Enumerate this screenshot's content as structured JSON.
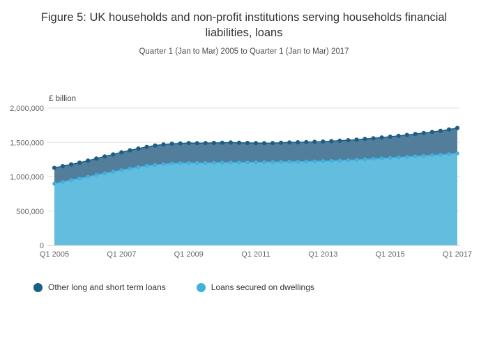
{
  "title": "Figure 5: UK households and non-profit institutions serving households financial liabilities, loans",
  "subtitle": "Quarter 1 (Jan to Mar) 2005 to Quarter 1 (Jan to Mar) 2017",
  "chart_data": {
    "type": "area",
    "unit_label": "£ billion",
    "ylim": [
      0,
      2000000
    ],
    "grid": true,
    "legend_position": "bottom",
    "yticks": [
      {
        "value": 0,
        "label": "0"
      },
      {
        "value": 500000,
        "label": "500,000"
      },
      {
        "value": 1000000,
        "label": "1,000,000"
      },
      {
        "value": 1500000,
        "label": "1,500,000"
      },
      {
        "value": 2000000,
        "label": "2,000,000"
      }
    ],
    "x": [
      "Q1 2005",
      "Q2 2005",
      "Q3 2005",
      "Q4 2005",
      "Q1 2006",
      "Q2 2006",
      "Q3 2006",
      "Q4 2006",
      "Q1 2007",
      "Q2 2007",
      "Q3 2007",
      "Q4 2007",
      "Q1 2008",
      "Q2 2008",
      "Q3 2008",
      "Q4 2008",
      "Q1 2009",
      "Q2 2009",
      "Q3 2009",
      "Q4 2009",
      "Q1 2010",
      "Q2 2010",
      "Q3 2010",
      "Q4 2010",
      "Q1 2011",
      "Q2 2011",
      "Q3 2011",
      "Q4 2011",
      "Q1 2012",
      "Q2 2012",
      "Q3 2012",
      "Q4 2012",
      "Q1 2013",
      "Q2 2013",
      "Q3 2013",
      "Q4 2013",
      "Q1 2014",
      "Q2 2014",
      "Q3 2014",
      "Q4 2014",
      "Q1 2015",
      "Q2 2015",
      "Q3 2015",
      "Q4 2015",
      "Q1 2016",
      "Q2 2016",
      "Q3 2016",
      "Q4 2016",
      "Q1 2017"
    ],
    "x_tick_indices": [
      0,
      8,
      16,
      24,
      32,
      40,
      48
    ],
    "x_tick_labels": [
      "Q1 2005",
      "Q1 2007",
      "Q1 2009",
      "Q1 2011",
      "Q1 2013",
      "Q1 2015",
      "Q1 2017"
    ],
    "series": [
      {
        "name": "Other long and short term loans",
        "color": "#1d5e86",
        "fill": "#527e9b",
        "values": [
          1130000,
          1155000,
          1180000,
          1205000,
          1235000,
          1265000,
          1295000,
          1325000,
          1355000,
          1385000,
          1410000,
          1435000,
          1455000,
          1470000,
          1480000,
          1485000,
          1490000,
          1488000,
          1490000,
          1492000,
          1495000,
          1498000,
          1495000,
          1492000,
          1490000,
          1488000,
          1490000,
          1495000,
          1500000,
          1502000,
          1505000,
          1508000,
          1512000,
          1518000,
          1525000,
          1532000,
          1540000,
          1550000,
          1560000,
          1572000,
          1583000,
          1595000,
          1608000,
          1622000,
          1637000,
          1652000,
          1668000,
          1688000,
          1710000
        ]
      },
      {
        "name": "Loans secured on dwellings",
        "color": "#41b1dd",
        "fill": "#63bddf",
        "values": [
          900000,
          925000,
          950000,
          975000,
          1000000,
          1025000,
          1050000,
          1072000,
          1095000,
          1118000,
          1140000,
          1158000,
          1172000,
          1183000,
          1192000,
          1198000,
          1200000,
          1200000,
          1201000,
          1203000,
          1205000,
          1207000,
          1208000,
          1209000,
          1210000,
          1211000,
          1213000,
          1215000,
          1217000,
          1219000,
          1221000,
          1224000,
          1227000,
          1231000,
          1236000,
          1241000,
          1247000,
          1253000,
          1260000,
          1267000,
          1274000,
          1281000,
          1289000,
          1297000,
          1305000,
          1313000,
          1321000,
          1330000,
          1340000
        ]
      }
    ],
    "axis_color": "#c8c8c8",
    "grid_color": "#e2e2e2",
    "tick_text_color": "#666666"
  },
  "legend": [
    {
      "label": "Other long and short term loans",
      "color": "#1d5e86"
    },
    {
      "label": "Loans secured on dwellings",
      "color": "#41b1dd"
    }
  ]
}
